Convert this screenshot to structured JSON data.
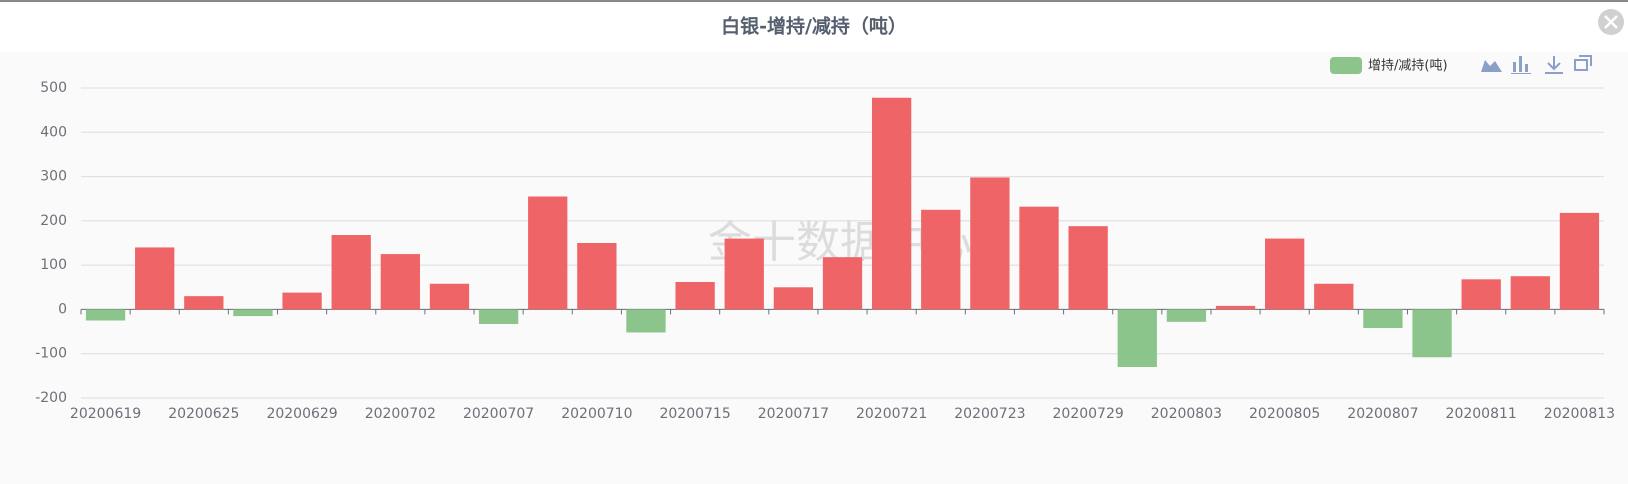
{
  "chart_data": {
    "type": "bar",
    "title": "白银-增持/减持（吨）",
    "watermark": "金十数据中心",
    "categories": [
      "20200619",
      null,
      "20200625",
      null,
      "20200629",
      null,
      "20200702",
      null,
      "20200707",
      null,
      "20200710",
      null,
      "20200715",
      null,
      "20200717",
      null,
      "20200721",
      null,
      "20200723",
      null,
      "20200729",
      null,
      "20200803",
      null,
      "20200805",
      null,
      "20200807",
      null,
      "20200811",
      null,
      "20200813"
    ],
    "series": [
      {
        "name": "增持/减持(吨)",
        "color": "#8bc58b",
        "negative_color": "#8bc58b",
        "positive_color": "#ef6567",
        "values": [
          -25,
          140,
          30,
          -15,
          38,
          168,
          125,
          58,
          -33,
          255,
          150,
          -52,
          62,
          160,
          50,
          118,
          478,
          225,
          298,
          232,
          188,
          -130,
          -28,
          8,
          160,
          58,
          -42,
          -108,
          68,
          75,
          218
        ]
      }
    ],
    "ylim": [
      -200,
      500
    ],
    "yticks": [
      -200,
      -100,
      0,
      100,
      200,
      300,
      400,
      500
    ],
    "grid": true,
    "legend": "top-right"
  }
}
